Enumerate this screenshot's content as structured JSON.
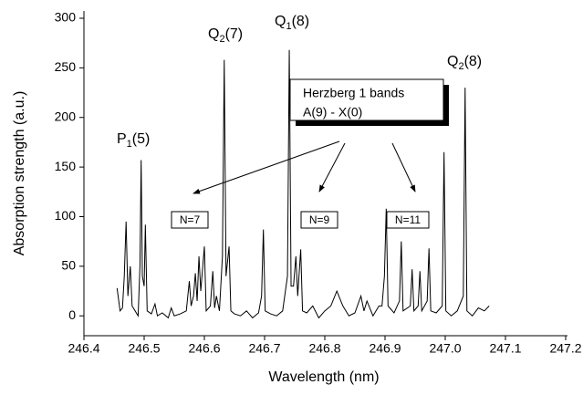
{
  "chart_data": {
    "type": "line",
    "xlabel": "Wavelength (nm)",
    "ylabel": "Absorption strength (a.u.)",
    "xlim": [
      246.4,
      247.2
    ],
    "xticks": [
      246.4,
      246.5,
      246.6,
      246.7,
      246.8,
      246.9,
      {
        "value": 247,
        "label": "247.0"
      },
      247.1,
      247.2
    ],
    "ylim": [
      -20,
      300
    ],
    "yticks": [
      0,
      50,
      100,
      150,
      200,
      250,
      300
    ],
    "series": [
      {
        "color": "#000000",
        "x": [
          246.455,
          246.46,
          246.464,
          246.467,
          246.47,
          246.473,
          246.477,
          246.48,
          246.485,
          246.49,
          246.493,
          246.495,
          246.497,
          246.5,
          246.502,
          246.505,
          246.512,
          246.518,
          246.522,
          246.53,
          246.54,
          246.545,
          246.55,
          246.56,
          246.57,
          246.575,
          246.578,
          246.582,
          246.585,
          246.588,
          246.591,
          246.594,
          246.6,
          246.603,
          246.61,
          246.614,
          246.617,
          246.62,
          246.625,
          246.63,
          246.633,
          246.636,
          246.641,
          246.644,
          246.65,
          246.66,
          246.67,
          246.68,
          246.69,
          246.695,
          246.698,
          246.701,
          246.71,
          246.72,
          246.73,
          246.738,
          246.741,
          246.744,
          246.748,
          246.752,
          246.755,
          246.76,
          246.763,
          246.77,
          246.78,
          246.79,
          246.8,
          246.81,
          246.82,
          246.83,
          246.84,
          246.85,
          246.86,
          246.865,
          246.87,
          246.88,
          246.89,
          246.895,
          246.899,
          246.902,
          246.905,
          246.915,
          246.924,
          246.927,
          246.93,
          246.942,
          246.945,
          246.948,
          246.955,
          246.958,
          246.961,
          246.97,
          246.973,
          246.976,
          246.985,
          246.995,
          246.998,
          247.001,
          247.01,
          247.02,
          247.03,
          247.033,
          247.036,
          247.045,
          247.055,
          247.065,
          247.073
        ],
        "values": [
          28,
          5,
          8,
          40,
          95,
          20,
          50,
          10,
          5,
          0,
          50,
          157,
          40,
          30,
          92,
          5,
          2,
          12,
          0,
          3,
          -2,
          8,
          0,
          2,
          5,
          35,
          10,
          20,
          43,
          15,
          60,
          25,
          70,
          5,
          10,
          45,
          8,
          20,
          5,
          60,
          258,
          40,
          70,
          5,
          2,
          0,
          5,
          -2,
          3,
          20,
          87,
          5,
          2,
          0,
          5,
          40,
          268,
          30,
          30,
          60,
          20,
          67,
          5,
          3,
          10,
          -2,
          5,
          10,
          25,
          10,
          0,
          3,
          20,
          5,
          15,
          0,
          10,
          10,
          40,
          108,
          10,
          3,
          15,
          75,
          5,
          10,
          47,
          5,
          10,
          45,
          5,
          15,
          68,
          5,
          3,
          10,
          165,
          5,
          0,
          5,
          20,
          230,
          5,
          0,
          8,
          5,
          10
        ]
      }
    ],
    "peak_labels": [
      [
        "P",
        "1",
        "(5)"
      ],
      [
        "Q",
        "2",
        "(7)"
      ],
      [
        "Q",
        "1",
        "(8)"
      ],
      [
        "Q",
        "2",
        "(8)"
      ]
    ],
    "box_lines": [
      "Herzberg 1 bands",
      "A(9) - X(0)"
    ],
    "n_labels": [
      "N=7",
      "N=9",
      "N=11"
    ]
  }
}
